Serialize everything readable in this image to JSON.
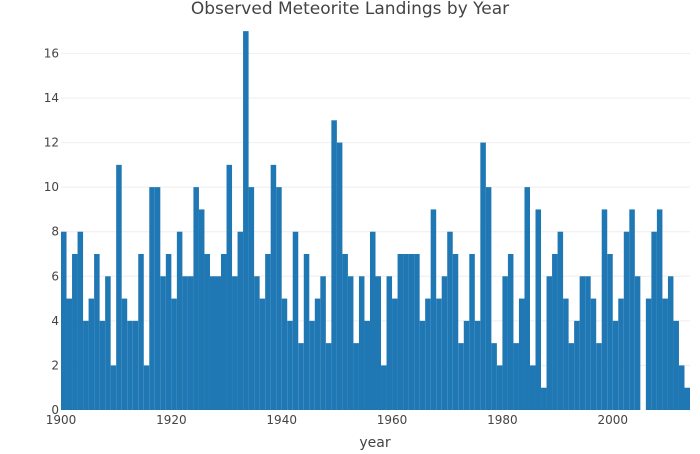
{
  "chart_data": {
    "type": "bar",
    "title": "Observed Meteorite Landings by Year",
    "xlabel": "year",
    "ylabel": "",
    "xlim": [
      1900,
      2014
    ],
    "ylim": [
      0,
      17.5
    ],
    "x_ticks": [
      1900,
      1920,
      1940,
      1960,
      1980,
      2000
    ],
    "y_ticks": [
      0,
      2,
      4,
      6,
      8,
      10,
      12,
      14,
      16
    ],
    "grid": true,
    "legend": "none",
    "bar_color": "#1f77b4",
    "x": [
      1900,
      1901,
      1902,
      1903,
      1904,
      1905,
      1906,
      1907,
      1908,
      1909,
      1910,
      1911,
      1912,
      1913,
      1914,
      1915,
      1916,
      1917,
      1918,
      1919,
      1920,
      1921,
      1922,
      1923,
      1924,
      1925,
      1926,
      1927,
      1928,
      1929,
      1930,
      1931,
      1932,
      1933,
      1934,
      1935,
      1936,
      1937,
      1938,
      1939,
      1940,
      1941,
      1942,
      1943,
      1944,
      1945,
      1946,
      1947,
      1948,
      1949,
      1950,
      1951,
      1952,
      1953,
      1954,
      1955,
      1956,
      1957,
      1958,
      1959,
      1960,
      1961,
      1962,
      1963,
      1964,
      1965,
      1966,
      1967,
      1968,
      1969,
      1970,
      1971,
      1972,
      1973,
      1974,
      1975,
      1976,
      1977,
      1978,
      1979,
      1980,
      1981,
      1982,
      1983,
      1984,
      1985,
      1986,
      1987,
      1988,
      1989,
      1990,
      1991,
      1992,
      1993,
      1994,
      1995,
      1996,
      1997,
      1998,
      1999,
      2000,
      2001,
      2002,
      2003,
      2004,
      2005,
      2006,
      2007,
      2008,
      2009,
      2010,
      2011,
      2012,
      2013
    ],
    "values": [
      8,
      5,
      7,
      8,
      4,
      5,
      7,
      4,
      6,
      2,
      11,
      5,
      4,
      4,
      7,
      2,
      10,
      10,
      6,
      7,
      5,
      8,
      6,
      6,
      10,
      9,
      7,
      6,
      6,
      7,
      11,
      6,
      8,
      17,
      10,
      6,
      5,
      7,
      11,
      10,
      5,
      4,
      8,
      3,
      7,
      4,
      5,
      6,
      3,
      13,
      12,
      7,
      6,
      3,
      6,
      4,
      8,
      6,
      2,
      6,
      5,
      7,
      7,
      7,
      7,
      4,
      5,
      9,
      5,
      6,
      8,
      7,
      3,
      4,
      7,
      4,
      12,
      10,
      3,
      2,
      6,
      7,
      3,
      5,
      10,
      2,
      9,
      1,
      6,
      7,
      8,
      5,
      3,
      4,
      6,
      6,
      5,
      3,
      9,
      7,
      4,
      5,
      8,
      9,
      6,
      0,
      5,
      8,
      9,
      5,
      6,
      4,
      2,
      1
    ]
  }
}
